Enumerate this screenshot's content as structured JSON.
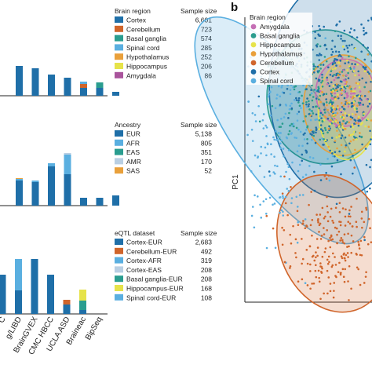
{
  "figure": {
    "panel_b_label": "b"
  },
  "chart_data": [
    {
      "type": "bar",
      "panel": "stacked sample counts by brain region",
      "categories": [
        "",
        "",
        "",
        "",
        "",
        "",
        "",
        ""
      ],
      "series": [
        {
          "name": "Cortex",
          "color": "#1f6fa8",
          "values": [
            0,
            38,
            35,
            27,
            23,
            10,
            10,
            5
          ]
        },
        {
          "name": "Cerebellum",
          "color": "#d0652b",
          "values": [
            0,
            0,
            0,
            0,
            0,
            5,
            0,
            0
          ]
        },
        {
          "name": "Basal ganglia",
          "color": "#2a9d8f",
          "values": [
            0,
            0,
            0,
            0,
            0,
            0,
            7,
            0
          ]
        },
        {
          "name": "Spinal cord",
          "color": "#5aafe0",
          "values": [
            0,
            0,
            0,
            0,
            0,
            3,
            0,
            0
          ]
        },
        {
          "name": "Hypothalamus",
          "color": "#e9a03b",
          "values": [
            0,
            0,
            0,
            0,
            0,
            0,
            0,
            0
          ]
        },
        {
          "name": "Hippocampus",
          "color": "#e6e34a",
          "values": [
            0,
            0,
            0,
            0,
            0,
            0,
            0,
            0
          ]
        },
        {
          "name": "Amygdala",
          "color": "#a9549c",
          "values": [
            0,
            0,
            0,
            0,
            0,
            0,
            0,
            0
          ]
        }
      ],
      "legend": {
        "title": "Brain region",
        "size_title": "Sample size",
        "entries": [
          {
            "label": "Cortex",
            "size": "6,601",
            "color": "#1f6fa8"
          },
          {
            "label": "Cerebellum",
            "size": "723",
            "color": "#d0652b"
          },
          {
            "label": "Basal ganglia",
            "size": "574",
            "color": "#2a9d8f"
          },
          {
            "label": "Spinal cord",
            "size": "285",
            "color": "#5aafe0"
          },
          {
            "label": "Hypothalamus",
            "size": "252",
            "color": "#e9a03b"
          },
          {
            "label": "Hippocampus",
            "size": "206",
            "color": "#e6e34a"
          },
          {
            "label": "Amygdala",
            "size": "86",
            "color": "#a9549c"
          }
        ]
      }
    },
    {
      "type": "bar",
      "panel": "stacked sample counts by ancestry",
      "categories": [
        "",
        "",
        "",
        "",
        "",
        "",
        "",
        ""
      ],
      "series": [
        {
          "name": "EUR",
          "color": "#1f6fa8",
          "values": [
            0,
            32,
            30,
            50,
            40,
            10,
            10,
            13
          ]
        },
        {
          "name": "AFR",
          "color": "#5aafe0",
          "values": [
            0,
            2,
            2,
            4,
            25,
            0,
            0,
            0
          ]
        },
        {
          "name": "EAS",
          "color": "#2a9d8f",
          "values": [
            0,
            0,
            0,
            0,
            0,
            0,
            0,
            0
          ]
        },
        {
          "name": "AMR",
          "color": "#b9cfe3",
          "values": [
            0,
            0,
            0,
            0,
            2,
            0,
            0,
            0
          ]
        },
        {
          "name": "SAS",
          "color": "#e9a03b",
          "values": [
            0,
            1,
            0,
            0,
            0,
            0,
            0,
            0
          ]
        }
      ],
      "legend": {
        "title": "Ancestry",
        "size_title": "Sample size",
        "entries": [
          {
            "label": "EUR",
            "size": "5,138",
            "color": "#1f6fa8"
          },
          {
            "label": "AFR",
            "size": "805",
            "color": "#5aafe0"
          },
          {
            "label": "EAS",
            "size": "351",
            "color": "#2a9d8f"
          },
          {
            "label": "AMR",
            "size": "170",
            "color": "#b9cfe3"
          },
          {
            "label": "SAS",
            "size": "52",
            "color": "#e9a03b"
          }
        ]
      }
    },
    {
      "type": "bar",
      "panel": "stacked sample counts by eQTL dataset",
      "categories": [
        "C",
        "g/LIBD",
        "BrainGVEX",
        "CMC HBCC",
        "UCLA ASD",
        "Braineac",
        "BipSeq"
      ],
      "series": [
        {
          "name": "Cortex-EUR",
          "color": "#1f6fa8",
          "values": [
            50,
            30,
            70,
            50,
            12,
            5,
            0
          ]
        },
        {
          "name": "Cerebellum-EUR",
          "color": "#d0652b",
          "values": [
            0,
            0,
            0,
            0,
            6,
            0,
            0
          ]
        },
        {
          "name": "Cortex-AFR",
          "color": "#5aafe0",
          "values": [
            0,
            40,
            0,
            0,
            0,
            0,
            0
          ]
        },
        {
          "name": "Cortex-EAS",
          "color": "#b9cfe3",
          "values": [
            0,
            0,
            0,
            0,
            0,
            0,
            0
          ]
        },
        {
          "name": "Basal ganglia-EUR",
          "color": "#2a9d8f",
          "values": [
            0,
            0,
            0,
            0,
            0,
            12,
            0
          ]
        },
        {
          "name": "Hippocampus-EUR",
          "color": "#e6e34a",
          "values": [
            0,
            0,
            0,
            0,
            0,
            14,
            0
          ]
        },
        {
          "name": "Spinal cord-EUR",
          "color": "#5aafe0",
          "values": [
            0,
            0,
            0,
            0,
            0,
            0,
            0
          ]
        }
      ],
      "legend": {
        "title": "eQTL dataset",
        "size_title": "Sample size",
        "entries": [
          {
            "label": "Cortex-EUR",
            "size": "2,683",
            "color": "#1f6fa8"
          },
          {
            "label": "Cerebellum-EUR",
            "size": "492",
            "color": "#d0652b"
          },
          {
            "label": "Cortex-AFR",
            "size": "319",
            "color": "#5aafe0"
          },
          {
            "label": "Cortex-EAS",
            "size": "208",
            "color": "#b9cfe3"
          },
          {
            "label": "Basal ganglia-EUR",
            "size": "208",
            "color": "#2a9d8f"
          },
          {
            "label": "Hippocampus-EUR",
            "size": "168",
            "color": "#e6e34a"
          },
          {
            "label": "Spinal cord-EUR",
            "size": "108",
            "color": "#5aafe0"
          }
        ]
      }
    },
    {
      "type": "scatter",
      "panel": "b",
      "ylabel": "PC1",
      "xlabel": "",
      "legend": {
        "title": "Brain region",
        "entries": [
          {
            "label": "Amygdala",
            "color": "#c56fb5"
          },
          {
            "label": "Basal ganglia",
            "color": "#2a9d8f"
          },
          {
            "label": "Hippocampus",
            "color": "#e6e34a"
          },
          {
            "label": "Hypothalamus",
            "color": "#e9a03b"
          },
          {
            "label": "Cerebellum",
            "color": "#d0652b"
          },
          {
            "label": "Cortex",
            "color": "#1f6fa8"
          },
          {
            "label": "Spinal cord",
            "color": "#5aafe0"
          }
        ]
      },
      "clusters": [
        {
          "name": "Spinal cord",
          "color": "#5aafe0",
          "center": [
            -0.55,
            0.05
          ],
          "spread": [
            0.5,
            0.8
          ],
          "n": 220
        },
        {
          "name": "Basal ganglia",
          "color": "#2a9d8f",
          "center": [
            0.35,
            0.45
          ],
          "spread": [
            0.6,
            0.4
          ],
          "n": 160
        },
        {
          "name": "Cortex",
          "color": "#1f6fa8",
          "center": [
            0.6,
            0.55
          ],
          "spread": [
            0.7,
            0.65
          ],
          "n": 380
        },
        {
          "name": "Hypothalamus",
          "color": "#e9a03b",
          "center": [
            0.7,
            0.35
          ],
          "spread": [
            0.4,
            0.3
          ],
          "n": 90
        },
        {
          "name": "Hippocampus",
          "color": "#e6e34a",
          "center": [
            0.8,
            0.3
          ],
          "spread": [
            0.3,
            0.3
          ],
          "n": 70
        },
        {
          "name": "Amygdala",
          "color": "#c56fb5",
          "center": [
            0.75,
            0.5
          ],
          "spread": [
            0.3,
            0.2
          ],
          "n": 40
        },
        {
          "name": "Cerebellum",
          "color": "#d0652b",
          "center": [
            0.5,
            -1.3
          ],
          "spread": [
            0.55,
            0.42
          ],
          "n": 230
        }
      ],
      "xlim": [
        -1.3,
        1.3
      ],
      "ylim": [
        -2.0,
        1.4
      ]
    }
  ]
}
